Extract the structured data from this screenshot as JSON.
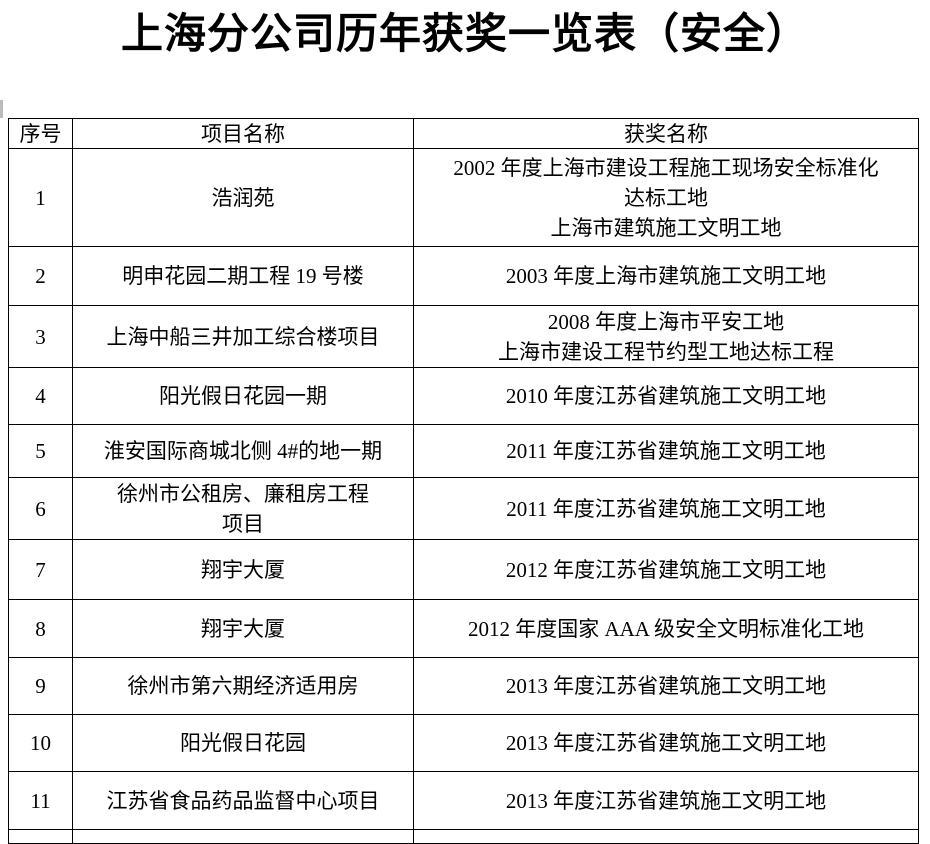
{
  "title": "上海分公司历年获奖一览表（安全）",
  "table": {
    "headers": [
      "序号",
      "项目名称",
      "获奖名称"
    ],
    "rows": [
      {
        "no": "1",
        "project_lines": [
          "浩润苑"
        ],
        "award_lines": [
          "2002 年度上海市建设工程施工现场安全标准化",
          "达标工地",
          "上海市建筑施工文明工地"
        ]
      },
      {
        "no": "2",
        "project_lines": [
          "明申花园二期工程 19 号楼"
        ],
        "award_lines": [
          "2003 年度上海市建筑施工文明工地"
        ]
      },
      {
        "no": "3",
        "project_lines": [
          "上海中船三井加工综合楼项目"
        ],
        "award_lines": [
          "2008 年度上海市平安工地",
          "上海市建设工程节约型工地达标工程"
        ]
      },
      {
        "no": "4",
        "project_lines": [
          "阳光假日花园一期"
        ],
        "award_lines": [
          "2010 年度江苏省建筑施工文明工地"
        ]
      },
      {
        "no": "5",
        "project_lines": [
          "淮安国际商城北侧 4#的地一期"
        ],
        "award_lines": [
          "2011 年度江苏省建筑施工文明工地"
        ]
      },
      {
        "no": "6",
        "project_lines": [
          "徐州市公租房、廉租房工程",
          "项目"
        ],
        "award_lines": [
          "2011 年度江苏省建筑施工文明工地"
        ]
      },
      {
        "no": "7",
        "project_lines": [
          "翔宇大厦"
        ],
        "award_lines": [
          "2012 年度江苏省建筑施工文明工地"
        ]
      },
      {
        "no": "8",
        "project_lines": [
          "翔宇大厦"
        ],
        "award_lines": [
          "2012 年度国家 AAA 级安全文明标准化工地"
        ]
      },
      {
        "no": "9",
        "project_lines": [
          "徐州市第六期经济适用房"
        ],
        "award_lines": [
          "2013 年度江苏省建筑施工文明工地"
        ]
      },
      {
        "no": "10",
        "project_lines": [
          "阳光假日花园"
        ],
        "award_lines": [
          "2013 年度江苏省建筑施工文明工地"
        ]
      },
      {
        "no": "11",
        "project_lines": [
          "江苏省食品药品监督中心项目"
        ],
        "award_lines": [
          "2013 年度江苏省建筑施工文明工地"
        ]
      }
    ]
  },
  "colors": {
    "text": "#000000",
    "border": "#000000",
    "background": "#ffffff",
    "margin_tick": "#bcbcbc"
  }
}
